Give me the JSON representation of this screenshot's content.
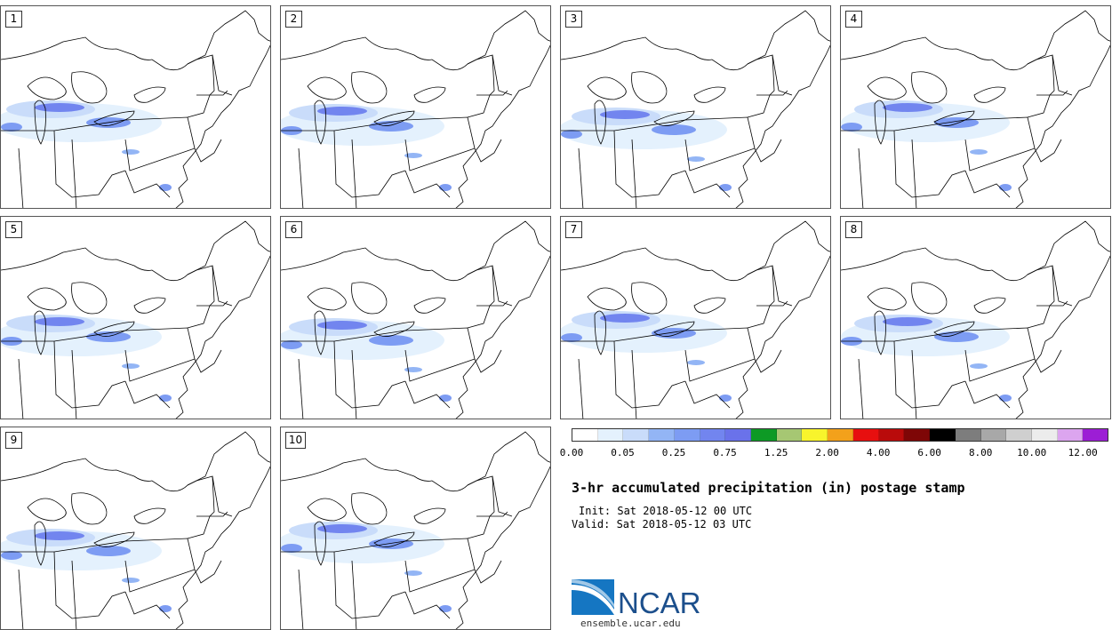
{
  "stamps": [
    {
      "num": "1"
    },
    {
      "num": "2"
    },
    {
      "num": "3"
    },
    {
      "num": "4"
    },
    {
      "num": "5"
    },
    {
      "num": "6"
    },
    {
      "num": "7"
    },
    {
      "num": "8"
    },
    {
      "num": "9"
    },
    {
      "num": "10"
    }
  ],
  "colorbar": {
    "colors": [
      "#ffffff",
      "#e4f1fd",
      "#c9dcfa",
      "#93b5f5",
      "#7d9cf3",
      "#7285ef",
      "#6a72ea",
      "#0d9a25",
      "#a6c773",
      "#f8f42c",
      "#f3a11b",
      "#e70f0f",
      "#b90b0b",
      "#7e0606",
      "#000000",
      "#7d7d7d",
      "#a8a8a8",
      "#cfcfcf",
      "#ececec",
      "#dca5ef",
      "#9c1ed5"
    ],
    "ticks": [
      "0.00",
      "0.05",
      "0.25",
      "0.75",
      "1.25",
      "2.00",
      "4.00",
      "6.00",
      "8.00",
      "10.00",
      "12.00"
    ]
  },
  "title": "3-hr accumulated precipitation (in) postage stamp",
  "init": "Init: Sat 2018-05-12 00 UTC",
  "valid": "Valid: Sat 2018-05-12 03 UTC",
  "logo": {
    "text": "NCAR"
  },
  "site": "ensemble.ucar.edu"
}
